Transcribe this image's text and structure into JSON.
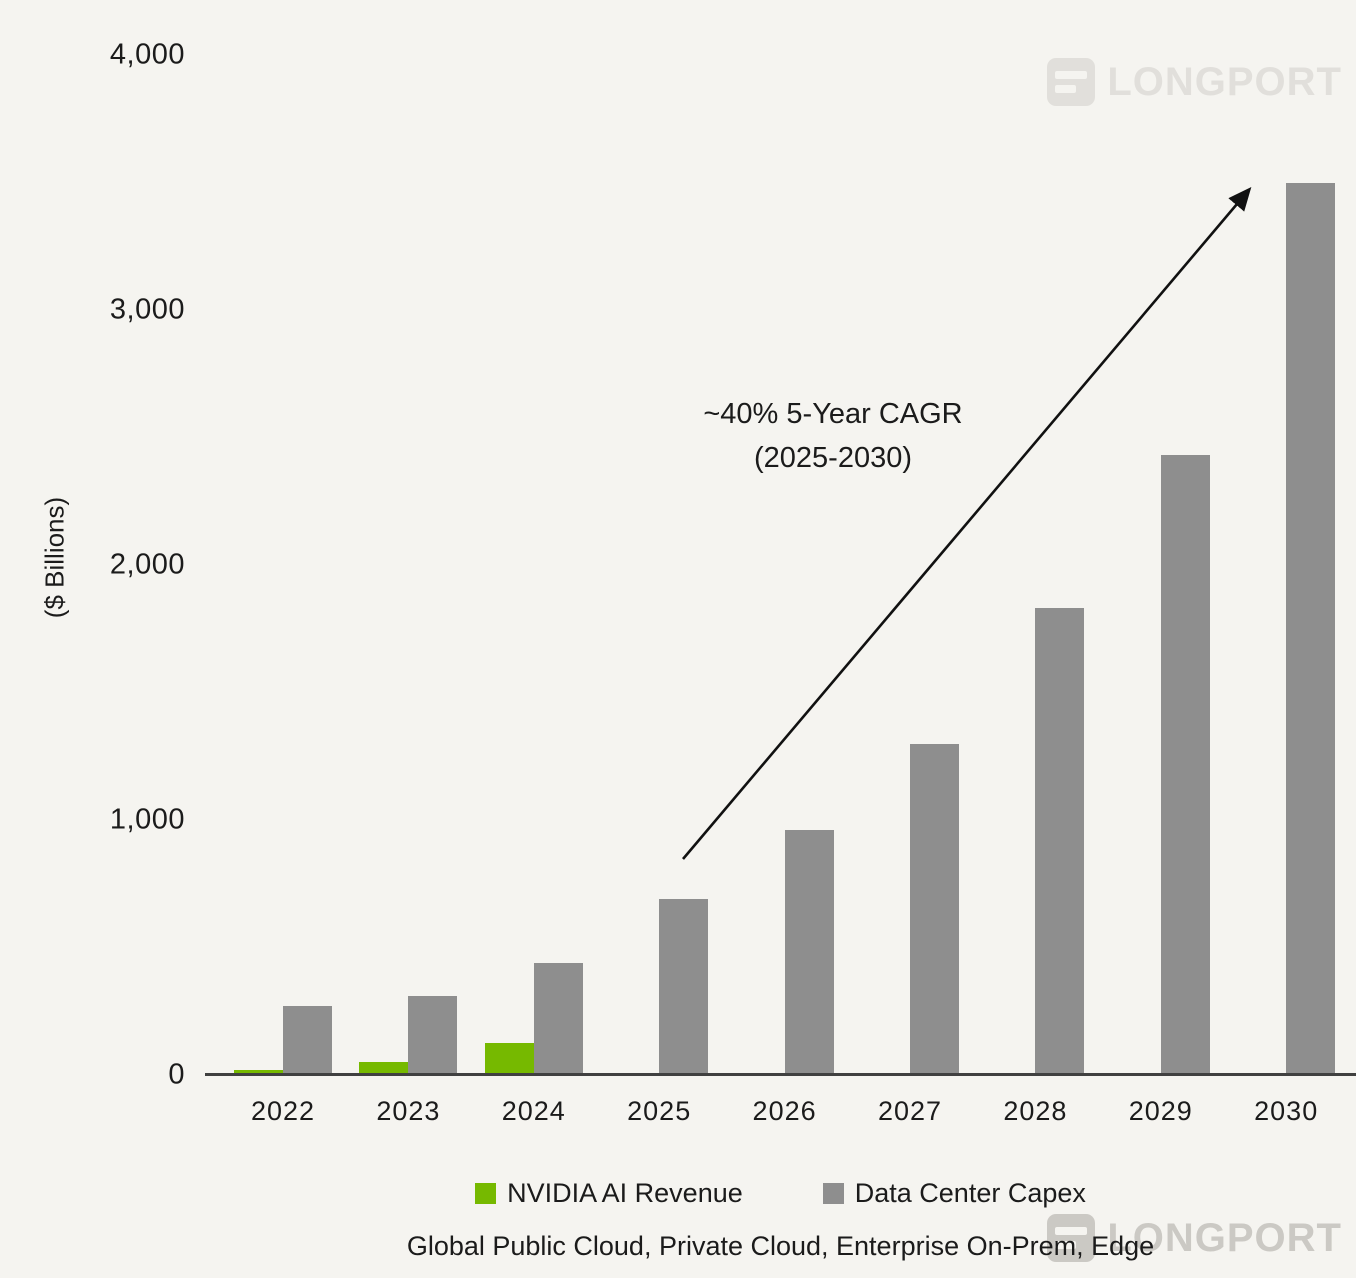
{
  "chart_data": {
    "type": "bar",
    "title": "",
    "ylabel": "($ Billions)",
    "xlabel": "",
    "ylim": [
      0,
      4000
    ],
    "yticks": [
      0,
      1000,
      2000,
      3000,
      4000
    ],
    "ytick_labels": [
      "0",
      "1,000",
      "2,000",
      "3,000",
      "4,000"
    ],
    "categories": [
      "2022",
      "2023",
      "2024",
      "2025",
      "2026",
      "2027",
      "2028",
      "2029",
      "2030"
    ],
    "series": [
      {
        "name": "NVIDIA AI Revenue",
        "color": "#76b900",
        "values": [
          20,
          50,
          125,
          0,
          0,
          0,
          0,
          0,
          0
        ]
      },
      {
        "name": "Data Center Capex",
        "color": "#8e8e8e",
        "values": [
          270,
          310,
          440,
          690,
          960,
          1300,
          1830,
          2430,
          3500
        ]
      }
    ],
    "grid": false,
    "legend_position": "bottom",
    "annotation": {
      "line1": "~40% 5-Year CAGR",
      "line2": "(2025-2030)",
      "arrow": "points from above 2025 bar to top of 2030 bar"
    },
    "footnote": "Global Public Cloud, Private Cloud, Enterprise On-Prem, Edge"
  },
  "watermark": {
    "text": "LONGPORT"
  }
}
